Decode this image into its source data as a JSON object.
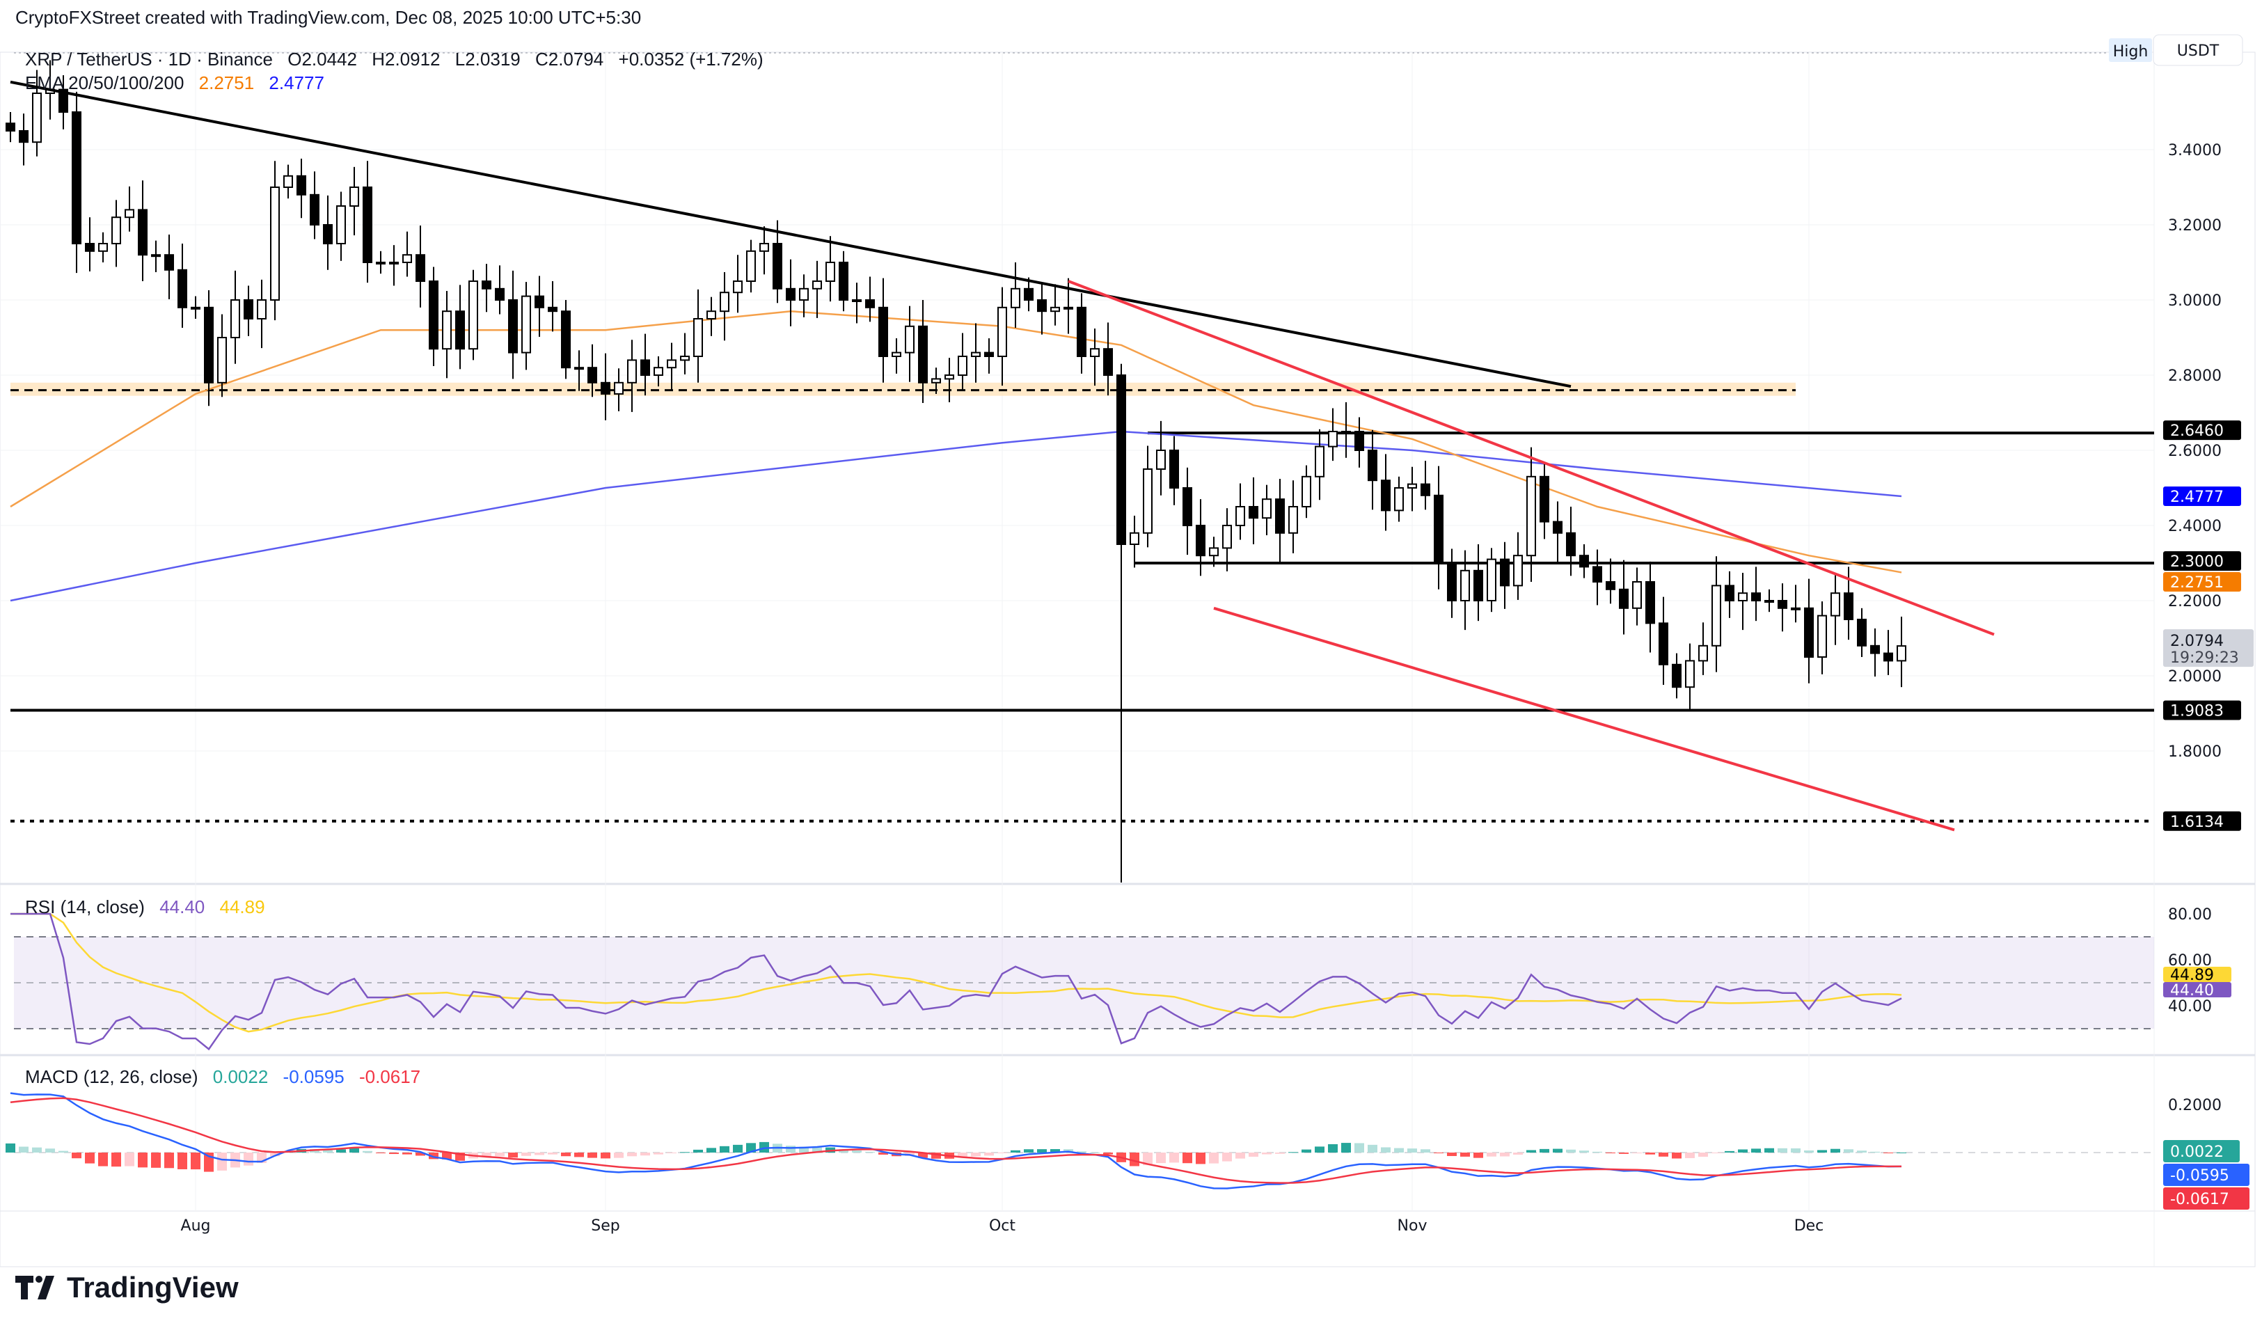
{
  "credit": "CryptoFXStreet created with TradingView.com, Dec 08, 2025 10:00 UTC+5:30",
  "symbol": {
    "pair": "XRP / TetherUS · 1D · Binance",
    "open": "O2.0442",
    "high": "H2.0912",
    "low": "L2.0319",
    "close": "C2.0794",
    "change": "+0.0352 (+1.72%)"
  },
  "ema": {
    "label": "EMA 20/50/100/200",
    "v1": "2.2751",
    "v2": "2.4777",
    "color1": "#f57c00",
    "color2": "#1a1aff"
  },
  "high_badge": "High",
  "currency": "USDT",
  "price_axis": [
    "3.4000",
    "3.2000",
    "3.0000",
    "2.8000",
    "2.6000",
    "2.4000",
    "2.2000",
    "2.0000",
    "1.8000"
  ],
  "price_tags": {
    "r1": "2.6460",
    "ema200": "2.4777",
    "r2": "2.3000",
    "ema50": "2.2751",
    "last": "2.0794",
    "countdown": "19:29:23",
    "s1": "1.9083",
    "s2": "1.6134"
  },
  "rsi": {
    "label": "RSI (14, close)",
    "value": "44.40",
    "ma": "44.89",
    "axis": [
      "80.00",
      "60.00",
      "40.00"
    ],
    "color": "#7e57c2",
    "ma_color": "#fdd835"
  },
  "macd": {
    "label": "MACD (12, 26, close)",
    "hist": "0.0022",
    "macd": "-0.0595",
    "signal": "-0.0617",
    "axis": [
      "0.2000"
    ],
    "colors": {
      "hist": "#26a69a",
      "macd": "#2962ff",
      "signal": "#f23645"
    }
  },
  "time_axis": [
    "Aug",
    "Sep",
    "Oct",
    "Nov",
    "Dec"
  ],
  "logo": "TradingView",
  "chart_data": {
    "type": "candlestick",
    "start_date": "2025-07-18",
    "closes": [
      3.45,
      3.42,
      3.55,
      3.56,
      3.5,
      3.15,
      3.13,
      3.15,
      3.22,
      3.24,
      3.12,
      3.12,
      3.08,
      2.98,
      2.98,
      2.78,
      2.9,
      3.0,
      2.95,
      3.0,
      3.3,
      3.33,
      3.28,
      3.2,
      3.15,
      3.25,
      3.3,
      3.1,
      3.1,
      3.1,
      3.12,
      3.05,
      2.87,
      2.97,
      2.87,
      3.05,
      3.03,
      3.0,
      2.86,
      3.01,
      2.98,
      2.97,
      2.82,
      2.82,
      2.78,
      2.75,
      2.78,
      2.84,
      2.8,
      2.82,
      2.84,
      2.85,
      2.95,
      2.97,
      3.02,
      3.05,
      3.13,
      3.15,
      3.03,
      3.0,
      3.03,
      3.05,
      3.1,
      3.0,
      3.0,
      2.98,
      2.85,
      2.86,
      2.93,
      2.78,
      2.79,
      2.8,
      2.85,
      2.86,
      2.85,
      2.98,
      3.03,
      3.0,
      2.97,
      2.98,
      2.98,
      2.85,
      2.87,
      2.8,
      2.35,
      2.38,
      2.55,
      2.6,
      2.5,
      2.4,
      2.32,
      2.34,
      2.4,
      2.45,
      2.42,
      2.47,
      2.38,
      2.45,
      2.53,
      2.61,
      2.65,
      2.65,
      2.6,
      2.52,
      2.44,
      2.5,
      2.51,
      2.48,
      2.3,
      2.2,
      2.28,
      2.2,
      2.31,
      2.24,
      2.32,
      2.53,
      2.41,
      2.38,
      2.32,
      2.29,
      2.25,
      2.23,
      2.18,
      2.25,
      2.14,
      2.03,
      1.97,
      2.04,
      2.08,
      2.24,
      2.2,
      2.22,
      2.2,
      2.2,
      2.18,
      2.18,
      2.05,
      2.16,
      2.22,
      2.15,
      2.08,
      2.06,
      2.04,
      2.0794
    ],
    "oct10_low": 1.25,
    "ema50": [
      [
        "2025-07-18",
        2.45
      ],
      [
        "2025-08-01",
        2.75
      ],
      [
        "2025-08-15",
        2.92
      ],
      [
        "2025-09-01",
        2.92
      ],
      [
        "2025-09-15",
        2.97
      ],
      [
        "2025-10-01",
        2.93
      ],
      [
        "2025-10-10",
        2.88
      ],
      [
        "2025-10-20",
        2.72
      ],
      [
        "2025-11-01",
        2.63
      ],
      [
        "2025-11-15",
        2.45
      ],
      [
        "2025-12-01",
        2.32
      ],
      [
        "2025-12-08",
        2.2751
      ]
    ],
    "ema200": [
      [
        "2025-07-18",
        2.2
      ],
      [
        "2025-08-01",
        2.3
      ],
      [
        "2025-09-01",
        2.5
      ],
      [
        "2025-10-01",
        2.62
      ],
      [
        "2025-10-10",
        2.65
      ],
      [
        "2025-11-01",
        2.6
      ],
      [
        "2025-11-15",
        2.55
      ],
      [
        "2025-12-08",
        2.4777
      ]
    ],
    "trendline_black": [
      [
        "2025-07-18",
        3.58
      ],
      [
        "2025-11-13",
        2.77
      ]
    ],
    "channel_upper": [
      [
        "2025-10-06",
        3.05
      ],
      [
        "2025-12-15",
        2.11
      ]
    ],
    "channel_lower": [
      [
        "2025-10-17",
        2.18
      ],
      [
        "2025-12-12",
        1.59
      ]
    ],
    "zone": {
      "from": "2025-07-18",
      "to": "2025-11-30",
      "low": 2.745,
      "high": 2.78,
      "mid": 2.76
    },
    "levels": [
      {
        "price": 2.646,
        "from": "2025-10-12"
      },
      {
        "price": 2.3,
        "from": "2025-10-11"
      },
      {
        "price": 1.9083,
        "from": "2025-07-18"
      },
      {
        "price": 1.6134,
        "from": "2025-07-18",
        "style": "dotted"
      }
    ],
    "ylim": [
      1.25,
      3.6
    ]
  }
}
